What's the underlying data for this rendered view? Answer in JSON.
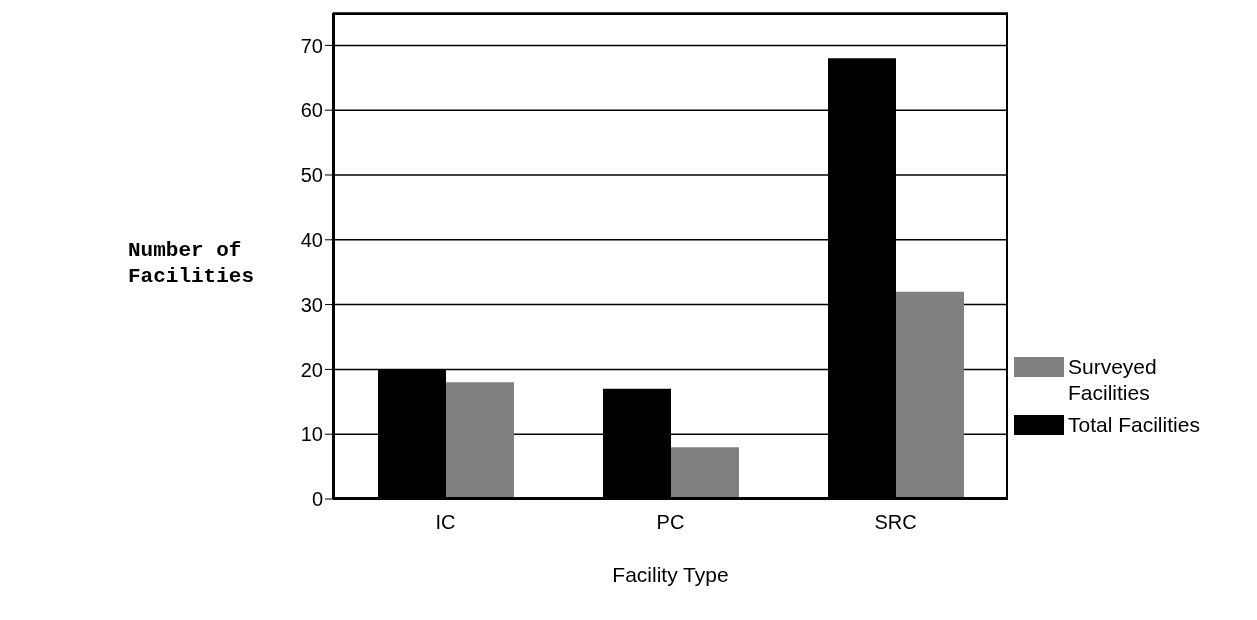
{
  "chart_data": {
    "type": "bar",
    "xlabel": "Facility Type",
    "ylabel": "Number of Facilities",
    "categories": [
      "IC",
      "PC",
      "SRC"
    ],
    "series": [
      {
        "name": "Total Facilities",
        "color": "#000000",
        "values": [
          20,
          17,
          68
        ]
      },
      {
        "name": "Surveyed Facilities",
        "color": "#808080",
        "values": [
          18,
          8,
          32
        ]
      }
    ],
    "ylim": [
      0,
      75
    ],
    "yticks": [
      0,
      10,
      20,
      30,
      40,
      50,
      60,
      70
    ],
    "grid": "y",
    "legend": "bottom right"
  }
}
